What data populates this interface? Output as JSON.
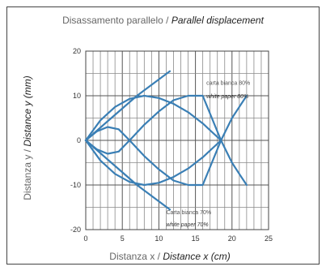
{
  "chart_data": {
    "type": "line",
    "title_it": "Disassamento parallelo",
    "title_sep": " / ",
    "title_en": "Parallel displacement",
    "xlabel_it": "Distanza x",
    "xlabel_sep": " / ",
    "xlabel_en": "Distance x (cm)",
    "ylabel_it": "Distanza y",
    "ylabel_sep": " / ",
    "ylabel_en": "Distance y (mm)",
    "xlim": [
      0,
      25
    ],
    "ylim": [
      -20,
      20
    ],
    "xticks": [
      "0",
      "5",
      "10",
      "15",
      "20",
      "25"
    ],
    "yticks": [
      "20",
      "10",
      "0",
      "-10",
      "-20"
    ],
    "grid": true,
    "series_color": "#3a7fb5",
    "series": [
      {
        "x": [
          0,
          3.5,
          7,
          11.5
        ],
        "y": [
          0,
          5,
          10,
          15.5
        ]
      },
      {
        "x": [
          0,
          3.5,
          7,
          11.5
        ],
        "y": [
          0,
          -5,
          -10,
          -15.5
        ]
      },
      {
        "x": [
          0,
          1.5,
          3,
          4.5,
          6,
          8,
          10,
          12,
          14,
          16,
          18.5,
          20,
          21,
          22
        ],
        "y": [
          0,
          -2,
          -3,
          -2.5,
          0,
          3.5,
          6.5,
          9,
          10,
          10,
          0,
          -5,
          -7.5,
          -10
        ]
      },
      {
        "x": [
          0,
          1.5,
          3,
          4.5,
          6,
          8,
          10,
          12,
          14,
          16,
          18.5,
          20,
          21,
          22
        ],
        "y": [
          0,
          2,
          3,
          2.5,
          0,
          -3.5,
          -6.5,
          -9,
          -10,
          -10,
          0,
          5,
          7.5,
          10
        ]
      },
      {
        "x": [
          0,
          2,
          4,
          6,
          8,
          10,
          12,
          14,
          16,
          18.5
        ],
        "y": [
          0,
          4.5,
          7.5,
          9.3,
          10,
          9.5,
          8.2,
          6.3,
          3.8,
          0
        ]
      },
      {
        "x": [
          0,
          2,
          4,
          6,
          8,
          10,
          12,
          14,
          16,
          18.5
        ],
        "y": [
          0,
          -4.5,
          -7.5,
          -9.3,
          -10,
          -9.5,
          -8.2,
          -6.3,
          -3.8,
          0
        ]
      }
    ],
    "annotations": [
      {
        "text": "carta bianca 80%",
        "x": 16.5,
        "y": 12.5,
        "style": "plain"
      },
      {
        "text": "white paper 80%",
        "x": 16.5,
        "y": 9.5,
        "style": "italic"
      },
      {
        "text": "Carta bianca 70%",
        "x": 11,
        "y": -16.5,
        "style": "plain"
      },
      {
        "text": "white paper 70%",
        "x": 11,
        "y": -19.3,
        "style": "italic"
      }
    ]
  }
}
